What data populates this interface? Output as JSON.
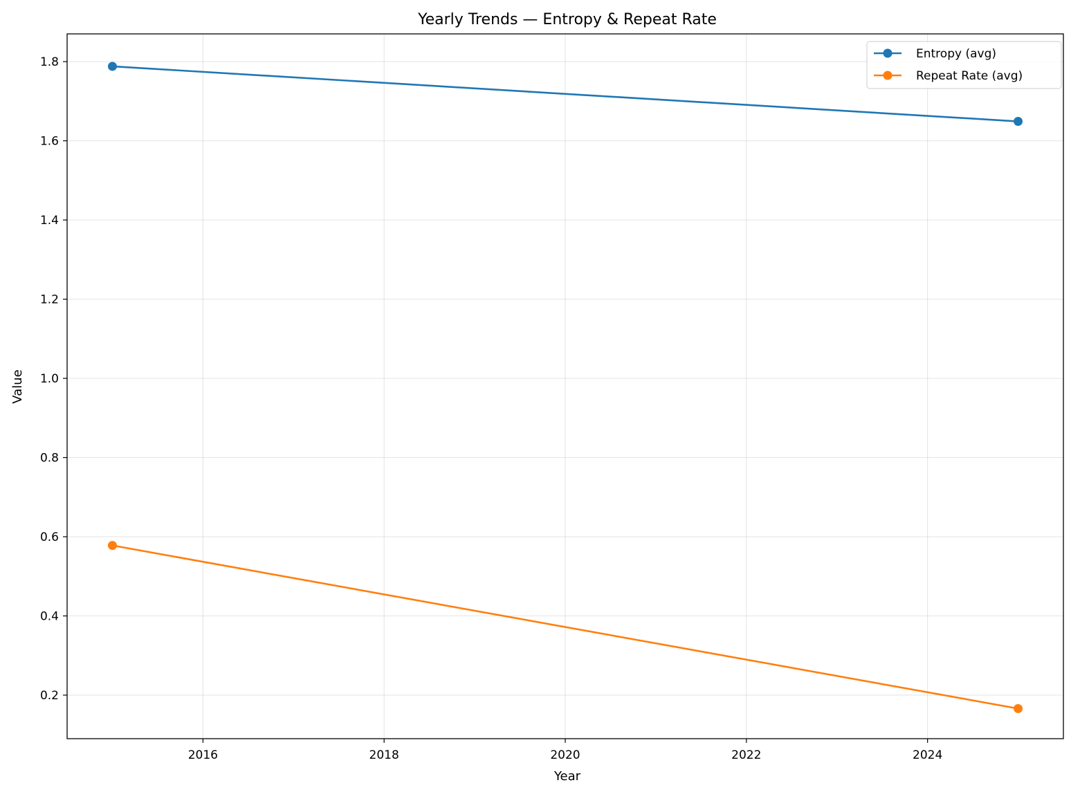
{
  "chart_data": {
    "type": "line",
    "title": "Yearly Trends — Entropy & Repeat Rate",
    "xlabel": "Year",
    "ylabel": "Value",
    "x": [
      2015,
      2025
    ],
    "xlim": [
      2014.5,
      2025.5
    ],
    "ylim": [
      0.09,
      1.87
    ],
    "xticks": [
      2016,
      2018,
      2020,
      2022,
      2024
    ],
    "yticks": [
      0.2,
      0.4,
      0.6,
      0.8,
      1.0,
      1.2,
      1.4,
      1.6,
      1.8
    ],
    "grid": true,
    "legend_position": "top-right",
    "series": [
      {
        "name": "Entropy (avg)",
        "color": "#1f77b4",
        "values": [
          1.788,
          1.649
        ]
      },
      {
        "name": "Repeat Rate (avg)",
        "color": "#ff7f0e",
        "values": [
          0.578,
          0.166
        ]
      }
    ]
  }
}
